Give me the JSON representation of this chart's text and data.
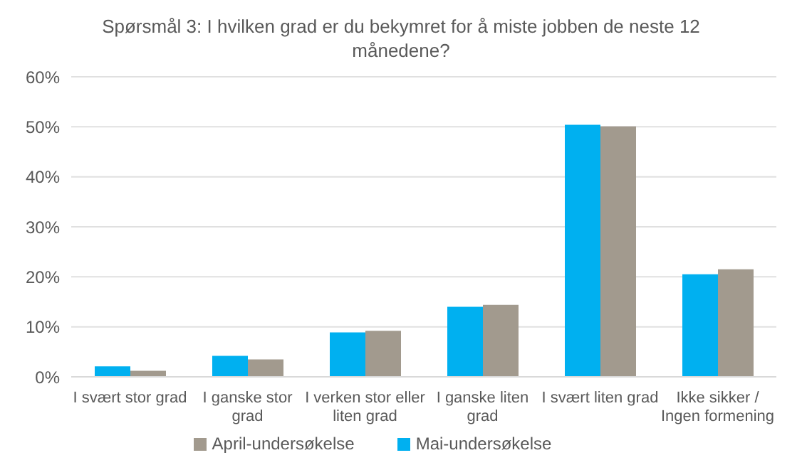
{
  "chart_data": {
    "type": "bar",
    "title": "Spørsmål 3: I hvilken grad er du bekymret for å miste jobben de neste 12 månedene?",
    "categories": [
      "I svært stor grad",
      "I ganske stor grad",
      "I verken stor eller liten grad",
      "I ganske liten grad",
      "I svært liten grad",
      "Ikke sikker / Ingen formening"
    ],
    "series": [
      {
        "name": "Mai-undersøkelse",
        "color": "#00b0f0",
        "values": [
          2.1,
          4.2,
          8.9,
          14.0,
          50.4,
          20.5
        ]
      },
      {
        "name": "April-undersøkelse",
        "color": "#a29a8e",
        "values": [
          1.2,
          3.5,
          9.2,
          14.4,
          50.1,
          21.5
        ]
      }
    ],
    "ylim": [
      0,
      60
    ],
    "yticks": [
      {
        "value": 0,
        "label": "0%"
      },
      {
        "value": 10,
        "label": "10%"
      },
      {
        "value": 20,
        "label": "20%"
      },
      {
        "value": 30,
        "label": "30%"
      },
      {
        "value": 40,
        "label": "40%"
      },
      {
        "value": 50,
        "label": "50%"
      },
      {
        "value": 60,
        "label": "60%"
      }
    ],
    "grid": "y",
    "legend": "bottom"
  }
}
